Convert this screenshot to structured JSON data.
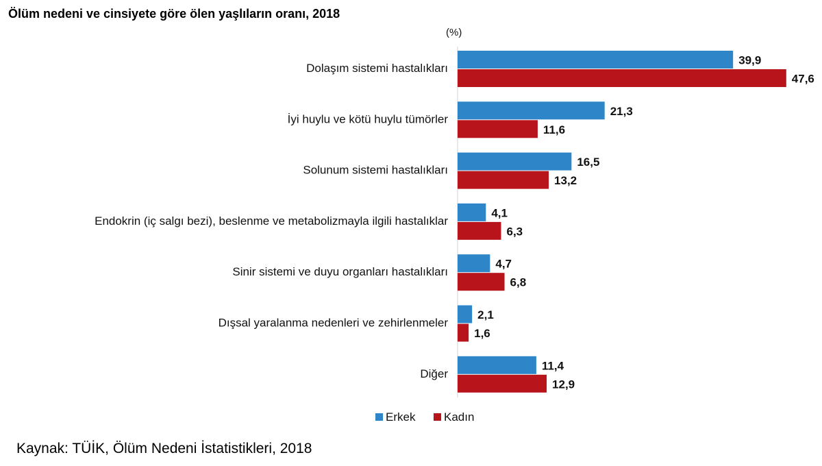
{
  "chart_data": {
    "type": "bar",
    "orientation": "horizontal",
    "title": "Ölüm nedeni ve cinsiyete göre ölen yaşlıların oranı, 2018",
    "unit_label": "(%)",
    "categories": [
      "Dolaşım sistemi hastalıkları",
      "İyi huylu ve kötü huylu tümörler",
      "Solunum sistemi hastalıkları",
      "Endokrin (iç salgı bezi), beslenme ve metabolizmayla ilgili hastalıklar",
      "Sinir sistemi ve duyu organları hastalıkları",
      "Dışsal yaralanma nedenleri ve zehirlenmeler",
      "Diğer"
    ],
    "series": [
      {
        "name": "Erkek",
        "color": "#2e86c8",
        "values": [
          39.9,
          21.3,
          16.5,
          4.1,
          4.7,
          2.1,
          11.4
        ],
        "value_labels": [
          "39,9",
          "21,3",
          "16,5",
          "4,1",
          "4,7",
          "2,1",
          "11,4"
        ]
      },
      {
        "name": "Kadın",
        "color": "#b8141c",
        "values": [
          47.6,
          11.6,
          13.2,
          6.3,
          6.8,
          1.6,
          12.9
        ],
        "value_labels": [
          "47,6",
          "11,6",
          "13,2",
          "6,3",
          "6,8",
          "1,6",
          "12,9"
        ]
      }
    ],
    "xlim": [
      0,
      50
    ],
    "grid": false,
    "legend_position": "bottom-center"
  },
  "source": "Kaynak: TÜİK, Ölüm Nedeni İstatistikleri, 2018"
}
